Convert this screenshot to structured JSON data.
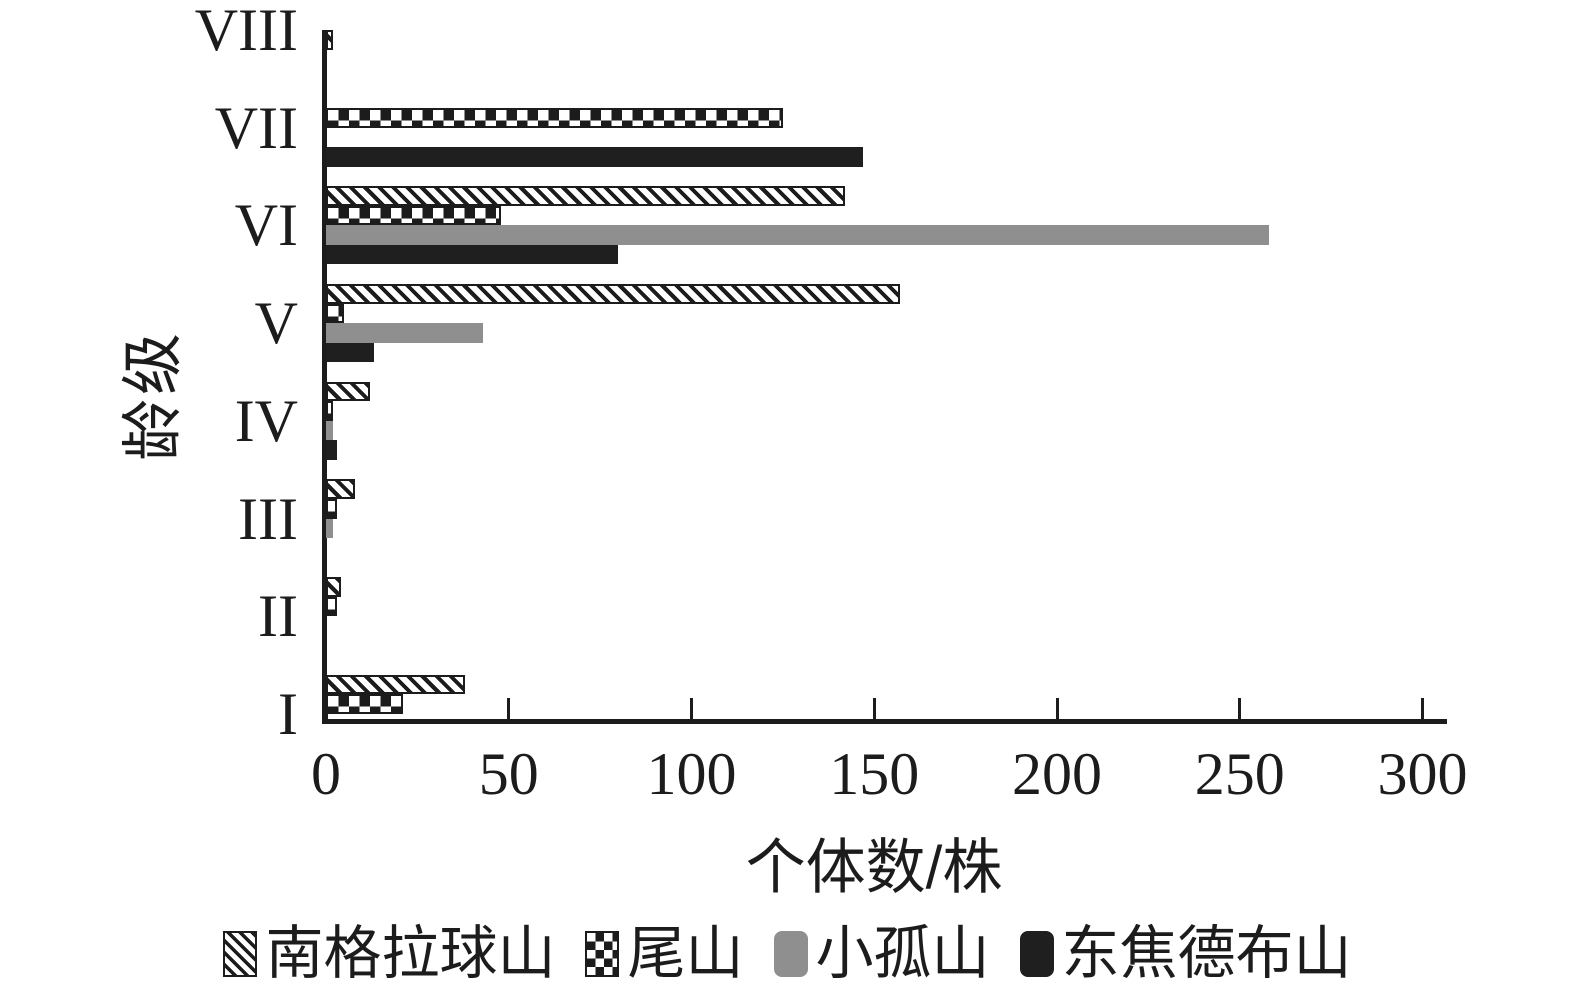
{
  "chart_data": {
    "type": "bar",
    "orientation": "horizontal",
    "title": "",
    "xlabel": "个体数/株",
    "ylabel": "龄级",
    "categories": [
      "VIII",
      "VII",
      "VI",
      "V",
      "IV",
      "III",
      "II",
      "I"
    ],
    "xlim": [
      0,
      300
    ],
    "xticks": [
      0,
      50,
      100,
      150,
      200,
      250,
      300
    ],
    "grid": false,
    "legend_position": "bottom",
    "series": [
      {
        "name": "南格拉球山",
        "pattern": "diagonal-hatch",
        "fill": "#ffffff",
        "stroke": "#1c1c1c",
        "values": [
          2,
          0,
          142,
          157,
          12,
          8,
          4,
          38
        ]
      },
      {
        "name": "尾山",
        "pattern": "checkerboard",
        "fill": "#1c1c1c",
        "stroke": "#1c1c1c",
        "values": [
          0,
          125,
          48,
          5,
          2,
          3,
          3,
          21
        ]
      },
      {
        "name": "小孤山",
        "pattern": "solid",
        "fill": "#8f8f8f",
        "values": [
          0,
          0,
          258,
          43,
          2,
          2,
          0,
          0
        ]
      },
      {
        "name": "东焦德布山",
        "pattern": "solid",
        "fill": "#1f1f1f",
        "values": [
          0,
          147,
          80,
          13,
          3,
          0,
          0,
          0
        ]
      }
    ]
  },
  "colors": {
    "axis": "#1c1c1c",
    "background": "#ffffff",
    "gray_series": "#8f8f8f",
    "black_series": "#1f1f1f"
  }
}
